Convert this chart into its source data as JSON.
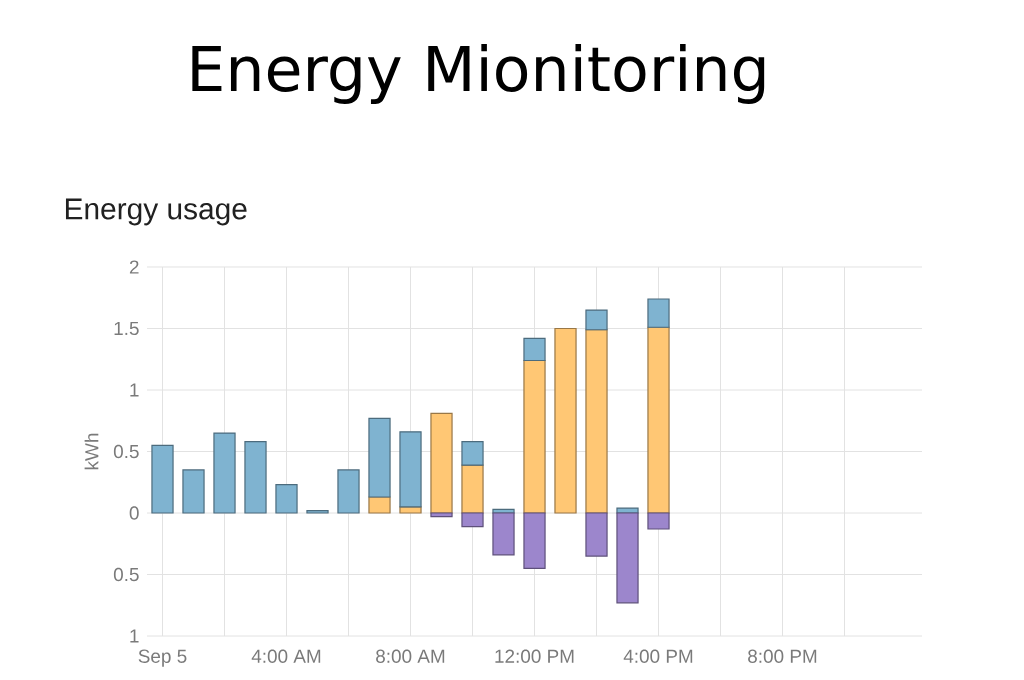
{
  "chart_data": {
    "type": "bar",
    "title": "Energy Mionitoring",
    "subtitle": "Energy usage",
    "ylabel": "kWh",
    "x": [
      0,
      1,
      2,
      3,
      4,
      5,
      6,
      7,
      8,
      9,
      10,
      11,
      12,
      13,
      14,
      15,
      16
    ],
    "stacked": true,
    "grid": true,
    "xlim": [
      -0.5,
      24.5
    ],
    "xticks": [
      {
        "value": 0,
        "label": "Sep 5"
      },
      {
        "value": 2,
        "label": null
      },
      {
        "value": 4,
        "label": "4:00 AM"
      },
      {
        "value": 6,
        "label": null
      },
      {
        "value": 8,
        "label": "8:00 AM"
      },
      {
        "value": 10,
        "label": null
      },
      {
        "value": 12,
        "label": "12:00 PM"
      },
      {
        "value": 14,
        "label": null
      },
      {
        "value": 16,
        "label": "4:00 PM"
      },
      {
        "value": 18,
        "label": null
      },
      {
        "value": 20,
        "label": "8:00 PM"
      },
      {
        "value": 22,
        "label": null
      }
    ],
    "ylim": [
      -1,
      2
    ],
    "yticks": [
      {
        "value": -1,
        "label": "1"
      },
      {
        "value": -0.5,
        "label": "0.5"
      },
      0,
      0.5,
      1,
      1.5,
      2
    ],
    "series": [
      {
        "color": "#ffc774",
        "values": [
          null,
          null,
          null,
          null,
          null,
          null,
          null,
          0.13,
          0.05,
          0.81,
          0.39,
          null,
          1.24,
          1.5,
          1.49,
          null,
          1.51
        ]
      },
      {
        "color": "#7fb3d0",
        "values": [
          0.55,
          0.35,
          0.65,
          0.58,
          0.23,
          0.02,
          0.35,
          0.64,
          0.61,
          null,
          0.19,
          0.03,
          0.18,
          null,
          0.16,
          0.04,
          0.23
        ]
      },
      {
        "color": "#9c86cc",
        "values": [
          null,
          null,
          null,
          null,
          null,
          null,
          null,
          null,
          null,
          -0.03,
          -0.11,
          -0.34,
          -0.45,
          null,
          -0.35,
          -0.73,
          -0.13
        ]
      }
    ]
  }
}
